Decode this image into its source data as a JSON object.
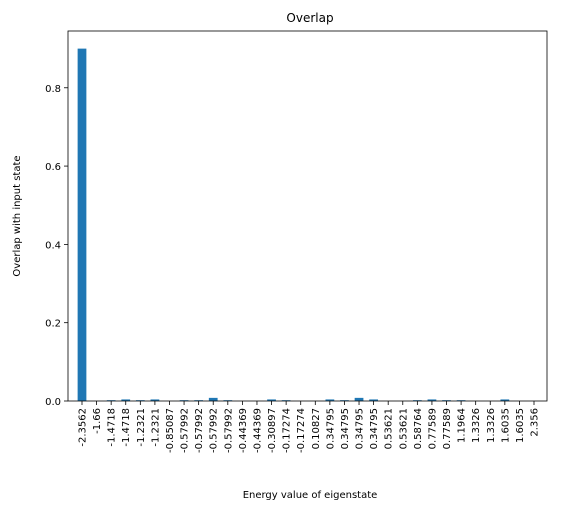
{
  "chart_data": {
    "type": "bar",
    "title": "Overlap",
    "xlabel": "Energy value of eigenstate",
    "ylabel": "Overlap with input state",
    "ylim": [
      0,
      0.945
    ],
    "yticks": [
      0.0,
      0.2,
      0.4,
      0.6,
      0.8
    ],
    "ytick_labels": [
      "0.0",
      "0.2",
      "0.4",
      "0.6",
      "0.8"
    ],
    "grid": false,
    "bar_color": "#1f77b4",
    "categories": [
      "-2.3562",
      "-1.66",
      "-1.4718",
      "-1.4718",
      "-1.2321",
      "-1.2321",
      "-0.85087",
      "-0.57992",
      "-0.57992",
      "-0.57992",
      "-0.57992",
      "-0.44369",
      "-0.44369",
      "-0.30897",
      "-0.17274",
      "-0.17274",
      "0.10827",
      "0.34795",
      "0.34795",
      "0.34795",
      "0.34795",
      "0.53621",
      "0.53621",
      "0.58764",
      "0.77589",
      "0.77589",
      "1.1964",
      "1.3326",
      "1.3326",
      "1.6035",
      "1.6035",
      "2.356"
    ],
    "values": [
      0.9,
      0.0,
      0.002,
      0.004,
      0.002,
      0.004,
      0.0,
      0.002,
      0.002,
      0.008,
      0.002,
      0.0,
      0.0,
      0.004,
      0.002,
      0.0,
      0.0,
      0.004,
      0.002,
      0.008,
      0.004,
      0.0,
      0.0,
      0.002,
      0.004,
      0.002,
      0.002,
      0.0,
      0.0,
      0.004,
      0.0,
      0.0
    ]
  }
}
